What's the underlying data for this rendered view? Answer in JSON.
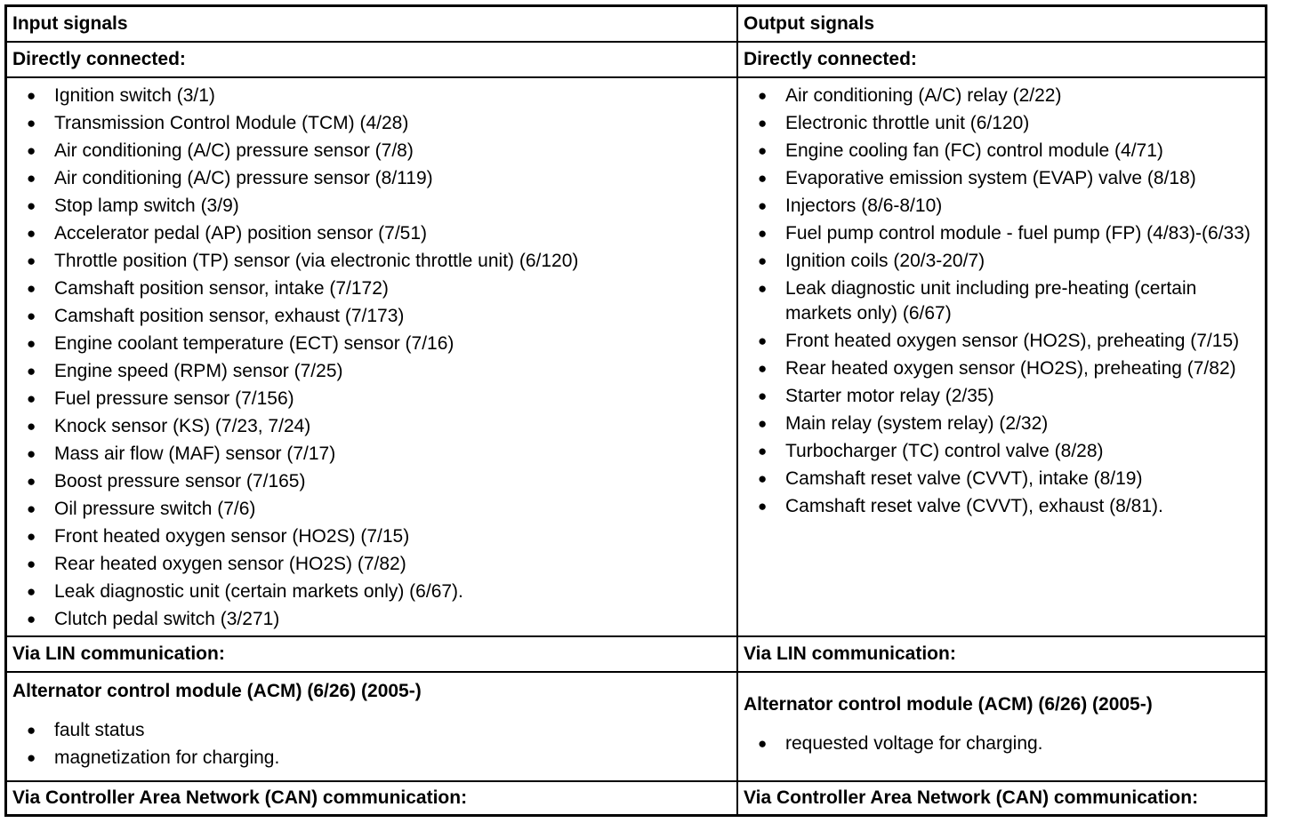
{
  "columns": [
    {
      "title": "Input signals",
      "direct_heading": "Directly connected:",
      "direct_items": [
        "Ignition switch (3/1)",
        "Transmission Control Module (TCM) (4/28)",
        "Air conditioning (A/C) pressure sensor (7/8)",
        "Air conditioning (A/C) pressure sensor (8/119)",
        "Stop lamp switch (3/9)",
        "Accelerator pedal (AP) position sensor (7/51)",
        "Throttle position (TP) sensor (via electronic throttle unit) (6/120)",
        "Camshaft position sensor, intake (7/172)",
        "Camshaft position sensor, exhaust (7/173)",
        "Engine coolant temperature (ECT) sensor (7/16)",
        "Engine speed (RPM) sensor (7/25)",
        "Fuel pressure sensor (7/156)",
        "Knock sensor (KS) (7/23, 7/24)",
        "Mass air flow (MAF) sensor (7/17)",
        "Boost pressure sensor (7/165)",
        "Oil pressure switch (7/6)",
        "Front heated oxygen sensor (HO2S) (7/15)",
        "Rear heated oxygen sensor (HO2S) (7/82)",
        "Leak diagnostic unit (certain markets only) (6/67).",
        "Clutch pedal switch (3/271)"
      ],
      "lin_heading": "Via LIN communication:",
      "lin_module": "Alternator control module (ACM) (6/26) (2005-)",
      "lin_items": [
        "fault status",
        "magnetization for charging."
      ],
      "can_heading": "Via Controller Area Network (CAN) communication:"
    },
    {
      "title": "Output signals",
      "direct_heading": "Directly connected:",
      "direct_items": [
        "Air conditioning (A/C) relay (2/22)",
        "Electronic throttle unit (6/120)",
        "Engine cooling fan (FC) control module (4/71)",
        "Evaporative emission system (EVAP) valve (8/18)",
        "Injectors (8/6-8/10)",
        "Fuel pump control module - fuel pump (FP) (4/83)-(6/33)",
        "Ignition coils (20/3-20/7)",
        "Leak diagnostic unit including pre-heating (certain markets only) (6/67)",
        "Front heated oxygen sensor (HO2S), preheating (7/15)",
        "Rear heated oxygen sensor (HO2S), preheating (7/82)",
        "Starter motor relay (2/35)",
        "Main relay (system relay) (2/32)",
        "Turbocharger (TC) control valve (8/28)",
        "Camshaft reset valve (CVVT), intake (8/19)",
        "Camshaft reset valve (CVVT), exhaust (8/81)."
      ],
      "lin_heading": "Via LIN communication:",
      "lin_module": "Alternator control module (ACM) (6/26) (2005-)",
      "lin_items": [
        "requested voltage for charging."
      ],
      "can_heading": "Via Controller Area Network (CAN) communication:"
    }
  ]
}
